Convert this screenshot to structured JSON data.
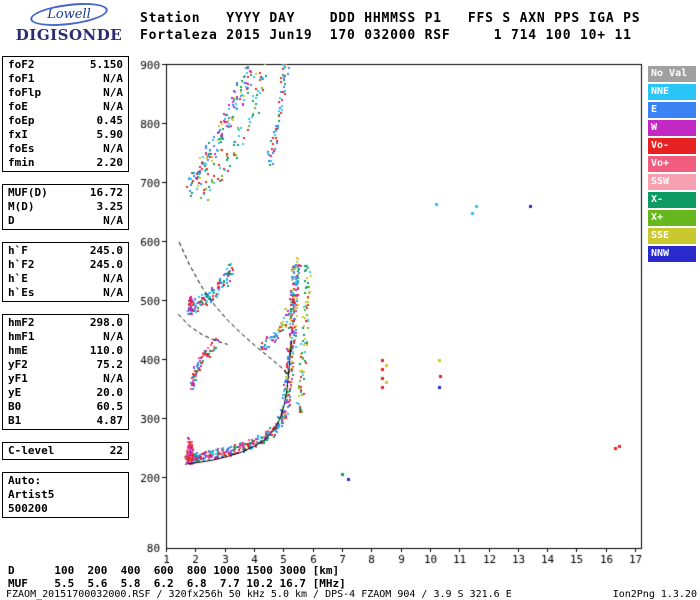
{
  "logo": {
    "brand": "Lowell",
    "product": "DIGISONDE"
  },
  "header": {
    "line1": "Station   YYYY DAY    DDD HHMMSS P1   FFS S AXN PPS IGA PS",
    "line2": "Fortaleza 2015 Jun19  170 032000 RSF     1 714 100 10+ 11"
  },
  "params": {
    "groups": [
      {
        "rows": [
          {
            "label": "foF2",
            "value": "5.150"
          },
          {
            "label": "foF1",
            "value": "N/A"
          },
          {
            "label": "foFlp",
            "value": "N/A"
          },
          {
            "label": "foE",
            "value": "N/A"
          },
          {
            "label": "foEp",
            "value": "0.45"
          },
          {
            "label": "fxI",
            "value": "5.90"
          },
          {
            "label": "foEs",
            "value": "N/A"
          },
          {
            "label": "fmin",
            "value": "2.20"
          }
        ]
      },
      {
        "rows": [
          {
            "label": "MUF(D)",
            "value": "16.72"
          },
          {
            "label": "M(D)",
            "value": "3.25"
          },
          {
            "label": "D",
            "value": "N/A"
          }
        ]
      },
      {
        "rows": [
          {
            "label": "h`F",
            "value": "245.0"
          },
          {
            "label": "h`F2",
            "value": "245.0"
          },
          {
            "label": "h`E",
            "value": "N/A"
          },
          {
            "label": "h`Es",
            "value": "N/A"
          }
        ]
      },
      {
        "rows": [
          {
            "label": "hmF2",
            "value": "298.0"
          },
          {
            "label": "hmF1",
            "value": "N/A"
          },
          {
            "label": "hmE",
            "value": "110.0"
          },
          {
            "label": "yF2",
            "value": "75.2"
          },
          {
            "label": "yF1",
            "value": "N/A"
          },
          {
            "label": "yE",
            "value": "20.0"
          },
          {
            "label": "B0",
            "value": "60.5"
          },
          {
            "label": "B1",
            "value": "4.87"
          }
        ]
      },
      {
        "rows": [
          {
            "label": "C-level",
            "value": "22"
          }
        ]
      }
    ],
    "footer_lines": [
      "Auto:",
      "Artist5",
      "500200"
    ]
  },
  "legend": {
    "position": "right",
    "items": [
      {
        "label": "No Val",
        "color": "#a0a0a0"
      },
      {
        "label": "NNE",
        "color": "#29c5f6"
      },
      {
        "label": "E",
        "color": "#3b83f5"
      },
      {
        "label": "W",
        "color": "#c428c4"
      },
      {
        "label": "Vo-",
        "color": "#e82222"
      },
      {
        "label": "Vo+",
        "color": "#f25c7e"
      },
      {
        "label": "SSW",
        "color": "#f7a1b0"
      },
      {
        "label": "X-",
        "color": "#0d9b63"
      },
      {
        "label": "X+",
        "color": "#67b71f"
      },
      {
        "label": "SSE",
        "color": "#c9c92f"
      },
      {
        "label": "NNW",
        "color": "#2929cc"
      }
    ]
  },
  "chart_data": {
    "type": "scatter",
    "title": "",
    "xlabel": "",
    "ylabel": "",
    "grid": false,
    "xlim": [
      1,
      17.2
    ],
    "ylim": [
      80,
      900
    ],
    "x_ticks": [
      1,
      2,
      3,
      4,
      5,
      6,
      7,
      8,
      9,
      10,
      11,
      12,
      13,
      14,
      15,
      16,
      17
    ],
    "y_ticks": [
      900,
      800,
      700,
      600,
      500,
      400,
      300,
      200
    ],
    "y_bottom_tick": 80,
    "traces": [
      {
        "name": "F-trace 1st hop",
        "sx": 0.09,
        "sy": 8,
        "n": 12,
        "colors": [
          "#e82222",
          "#0d9b63",
          "#29c5f6",
          "#c428c4",
          "#3b83f5",
          "#f25c7e"
        ],
        "pts": [
          [
            1.7,
            232
          ],
          [
            1.8,
            231
          ],
          [
            1.9,
            233
          ],
          [
            2.0,
            234
          ],
          [
            2.1,
            235
          ],
          [
            2.2,
            236
          ],
          [
            2.35,
            237
          ],
          [
            2.5,
            239
          ],
          [
            2.65,
            240
          ],
          [
            2.8,
            242
          ],
          [
            2.95,
            244
          ],
          [
            3.1,
            246
          ],
          [
            3.25,
            248
          ],
          [
            3.4,
            250
          ],
          [
            3.55,
            252
          ],
          [
            3.7,
            254
          ],
          [
            3.85,
            257
          ],
          [
            4.0,
            260
          ],
          [
            4.15,
            263
          ],
          [
            4.3,
            267
          ],
          [
            4.45,
            272
          ],
          [
            4.6,
            278
          ],
          [
            4.75,
            286
          ],
          [
            4.88,
            296
          ],
          [
            4.98,
            308
          ]
        ]
      },
      {
        "name": "1st hop start cluster",
        "sx": 0.06,
        "sy": 11,
        "n": 14,
        "colors": [
          "#e82222",
          "#c428c4",
          "#f25c7e"
        ],
        "pts": [
          [
            1.73,
            238
          ],
          [
            1.77,
            246
          ],
          [
            1.81,
            252
          ],
          [
            1.75,
            258
          ],
          [
            1.79,
            232
          ],
          [
            1.83,
            242
          ]
        ]
      },
      {
        "name": "F asymptote O-mode",
        "sx": 0.13,
        "sy": 11,
        "n": 16,
        "colors": [
          "#e82222",
          "#e82222",
          "#0d9b63",
          "#29c5f6",
          "#3b83f5",
          "#c428c4",
          "#c9c92f"
        ],
        "pts": [
          [
            5.03,
            312
          ],
          [
            5.08,
            332
          ],
          [
            5.12,
            352
          ],
          [
            5.16,
            372
          ],
          [
            5.2,
            392
          ],
          [
            5.23,
            412
          ],
          [
            5.26,
            432
          ],
          [
            5.29,
            452
          ],
          [
            5.31,
            472
          ],
          [
            5.33,
            492
          ],
          [
            5.35,
            512
          ],
          [
            5.37,
            532
          ],
          [
            5.39,
            550
          ]
        ]
      },
      {
        "name": "F asymptote X-mode",
        "sx": 0.11,
        "sy": 12,
        "n": 9,
        "colors": [
          "#0d9b63",
          "#c9c92f",
          "#29c5f6",
          "#e82222",
          "#67b71f"
        ],
        "pts": [
          [
            5.5,
            315
          ],
          [
            5.55,
            345
          ],
          [
            5.6,
            375
          ],
          [
            5.65,
            405
          ],
          [
            5.68,
            435
          ],
          [
            5.72,
            465
          ],
          [
            5.75,
            495
          ],
          [
            5.78,
            523
          ],
          [
            5.8,
            548
          ]
        ]
      },
      {
        "name": "2nd hop flat",
        "sx": 0.09,
        "sy": 11,
        "n": 9,
        "colors": [
          "#29c5f6",
          "#0d9b63",
          "#e82222",
          "#3b83f5",
          "#c428c4"
        ],
        "pts": [
          [
            1.78,
            488
          ],
          [
            1.9,
            490
          ],
          [
            2.02,
            493
          ],
          [
            2.14,
            496
          ],
          [
            2.26,
            500
          ],
          [
            2.38,
            504
          ],
          [
            2.5,
            509
          ],
          [
            2.62,
            514
          ],
          [
            2.74,
            520
          ],
          [
            2.86,
            527
          ],
          [
            2.98,
            535
          ],
          [
            3.08,
            544
          ],
          [
            3.18,
            554
          ]
        ]
      },
      {
        "name": "2nd hop start cluster",
        "sx": 0.05,
        "sy": 9,
        "n": 11,
        "colors": [
          "#e82222",
          "#c428c4"
        ],
        "pts": [
          [
            1.78,
            492
          ],
          [
            1.82,
            500
          ],
          [
            1.86,
            486
          ]
        ]
      },
      {
        "name": "2nd hop rise",
        "sx": 0.11,
        "sy": 10,
        "n": 9,
        "colors": [
          "#e82222",
          "#0d9b63",
          "#29c5f6",
          "#3b83f5",
          "#c9c92f",
          "#c428c4"
        ],
        "pts": [
          [
            4.3,
            428
          ],
          [
            4.45,
            432
          ],
          [
            4.6,
            437
          ],
          [
            4.75,
            444
          ],
          [
            4.9,
            453
          ],
          [
            5.02,
            464
          ],
          [
            5.12,
            478
          ],
          [
            5.22,
            494
          ],
          [
            5.3,
            512
          ],
          [
            5.36,
            530
          ],
          [
            5.42,
            550
          ],
          [
            5.46,
            564
          ]
        ]
      },
      {
        "name": "3rd hop band A",
        "sx": 0.15,
        "sy": 19,
        "n": 9,
        "colors": [
          "#29c5f6",
          "#0d9b63",
          "#e82222",
          "#3b83f5",
          "#c9c92f",
          "#c428c4"
        ],
        "pts": [
          [
            1.82,
            690
          ],
          [
            1.95,
            702
          ],
          [
            2.08,
            714
          ],
          [
            2.21,
            726
          ],
          [
            2.34,
            738
          ],
          [
            2.47,
            750
          ],
          [
            2.6,
            762
          ],
          [
            2.73,
            774
          ],
          [
            2.86,
            786
          ],
          [
            2.99,
            799
          ],
          [
            3.12,
            812
          ],
          [
            3.25,
            825
          ],
          [
            3.38,
            838
          ],
          [
            3.51,
            851
          ],
          [
            3.64,
            864
          ],
          [
            3.77,
            878
          ],
          [
            3.9,
            892
          ]
        ]
      },
      {
        "name": "3rd hop band B",
        "sx": 0.14,
        "sy": 17,
        "n": 7,
        "colors": [
          "#29c5f6",
          "#0d9b63",
          "#e82222",
          "#67b71f"
        ],
        "pts": [
          [
            2.3,
            688
          ],
          [
            2.55,
            702
          ],
          [
            2.8,
            718
          ],
          [
            3.05,
            736
          ],
          [
            3.3,
            757
          ],
          [
            3.55,
            780
          ],
          [
            3.8,
            806
          ],
          [
            4.0,
            834
          ],
          [
            4.15,
            862
          ],
          [
            4.25,
            888
          ]
        ]
      },
      {
        "name": "3rd hop rise",
        "sx": 0.1,
        "sy": 12,
        "n": 8,
        "colors": [
          "#29c5f6",
          "#0d9b63",
          "#e82222",
          "#3b83f5"
        ],
        "pts": [
          [
            4.55,
            742
          ],
          [
            4.63,
            760
          ],
          [
            4.71,
            780
          ],
          [
            4.79,
            802
          ],
          [
            4.87,
            826
          ],
          [
            4.94,
            852
          ],
          [
            5.0,
            878
          ],
          [
            5.05,
            894
          ]
        ]
      },
      {
        "name": "mid-left scatter band",
        "sx": 0.08,
        "sy": 9,
        "n": 8,
        "colors": [
          "#c428c4",
          "#e82222",
          "#0d9b63",
          "#f25c7e",
          "#3b83f5"
        ],
        "pts": [
          [
            1.86,
            356
          ],
          [
            1.92,
            368
          ],
          [
            1.99,
            379
          ],
          [
            2.07,
            389
          ],
          [
            2.16,
            398
          ],
          [
            2.27,
            407
          ],
          [
            2.39,
            414
          ],
          [
            2.52,
            421
          ],
          [
            2.65,
            427
          ]
        ]
      }
    ],
    "isolated_points": [
      [
        7.0,
        205,
        "#0d9b63"
      ],
      [
        7.2,
        197,
        "#2929cc"
      ],
      [
        8.35,
        352,
        "#e82222"
      ],
      [
        8.35,
        368,
        "#e82222"
      ],
      [
        8.38,
        384,
        "#e82222"
      ],
      [
        8.35,
        398,
        "#e82222"
      ],
      [
        8.52,
        362,
        "#c9c92f"
      ],
      [
        8.52,
        390,
        "#c9c92f"
      ],
      [
        10.3,
        352,
        "#2929cc"
      ],
      [
        10.35,
        372,
        "#e82222"
      ],
      [
        10.3,
        398,
        "#c9c92f"
      ],
      [
        10.2,
        663,
        "#29c5f6"
      ],
      [
        11.45,
        648,
        "#29c5f6"
      ],
      [
        11.58,
        660,
        "#29c5f6"
      ],
      [
        13.4,
        660,
        "#2929cc"
      ],
      [
        16.3,
        250,
        "#e82222"
      ],
      [
        16.45,
        252,
        "#e82222"
      ]
    ],
    "fitted_trace_solid": [
      [
        1.65,
        222
      ],
      [
        2.1,
        225
      ],
      [
        2.6,
        229
      ],
      [
        3.1,
        235
      ],
      [
        3.6,
        243
      ],
      [
        4.0,
        252
      ],
      [
        4.35,
        263
      ],
      [
        4.65,
        278
      ],
      [
        4.88,
        298
      ],
      [
        5.03,
        322
      ],
      [
        5.13,
        350
      ],
      [
        5.2,
        385
      ],
      [
        5.25,
        418
      ],
      [
        5.28,
        432
      ]
    ],
    "model_curves_dashed": [
      [
        [
          1.45,
          598
        ],
        [
          1.8,
          560
        ],
        [
          2.2,
          524
        ],
        [
          2.65,
          492
        ],
        [
          3.1,
          466
        ],
        [
          3.6,
          442
        ],
        [
          4.1,
          420
        ],
        [
          4.6,
          400
        ],
        [
          5.0,
          383
        ],
        [
          5.2,
          372
        ]
      ],
      [
        [
          1.42,
          476
        ],
        [
          1.8,
          456
        ],
        [
          2.25,
          441
        ],
        [
          2.7,
          431
        ],
        [
          3.1,
          425
        ]
      ]
    ]
  },
  "dmuf": {
    "d_label": "D",
    "d_values": [
      "100",
      "200",
      "400",
      "600",
      "800",
      "1000",
      "1500",
      "3000"
    ],
    "d_unit": "[km]",
    "muf_label": "MUF",
    "muf_values": [
      "5.5",
      "5.6",
      "5.8",
      "6.2",
      "6.8",
      "7.7",
      "10.2",
      "16.7"
    ],
    "muf_unit": "[MHz]"
  },
  "status_bar": {
    "left": "FZAOM_20151700032000.RSF / 320fx256h 50 kHz 5.0 km / DPS-4 FZAOM 904 / 3.9 S 321.6 E",
    "right": "Ion2Png 1.3.20"
  }
}
